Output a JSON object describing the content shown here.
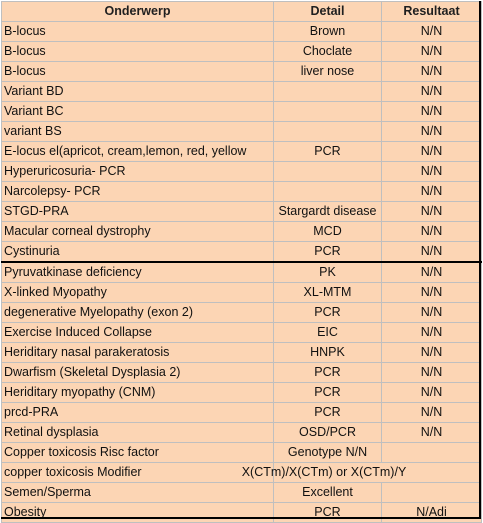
{
  "headers": {
    "subject": "Onderwerp",
    "detail": "Detail",
    "result": "Resultaat"
  },
  "rows": [
    {
      "subject": "B-locus",
      "detail": "Brown",
      "result": "N/N"
    },
    {
      "subject": "B-locus",
      "detail": "Choclate",
      "result": "N/N"
    },
    {
      "subject": "B-locus",
      "detail": "liver nose",
      "result": "N/N"
    },
    {
      "subject": "Variant BD",
      "detail": "",
      "result": "N/N"
    },
    {
      "subject": "Variant BC",
      "detail": "",
      "result": "N/N"
    },
    {
      "subject": "variant BS",
      "detail": "",
      "result": "N/N"
    },
    {
      "subject": "E-locus el(apricot, cream,lemon, red, yellow",
      "detail": "PCR",
      "result": "N/N"
    },
    {
      "subject": "Hyperuricosuria- PCR",
      "detail": "",
      "result": "N/N"
    },
    {
      "subject": "Narcolepsy- PCR",
      "detail": "",
      "result": "N/N"
    },
    {
      "subject": "STGD-PRA",
      "detail": "Stargardt disease",
      "result": "N/N"
    },
    {
      "subject": "Macular corneal dystrophy",
      "detail": "MCD",
      "result": "N/N"
    },
    {
      "subject": "Cystinuria",
      "detail": "PCR",
      "result": "N/N"
    },
    {
      "subject": "Pyruvatkinase deficiency",
      "detail": "PK",
      "result": "N/N"
    },
    {
      "subject": "X-linked Myopathy",
      "detail": "XL-MTM",
      "result": "N/N"
    },
    {
      "subject": "degenerative Myelopathy (exon 2)",
      "detail": "PCR",
      "result": "N/N"
    },
    {
      "subject": "Exercise Induced Collapse",
      "detail": "EIC",
      "result": "N/N"
    },
    {
      "subject": "Heriditary nasal parakeratosis",
      "detail": "HNPK",
      "result": "N/N"
    },
    {
      "subject": "Dwarfism (Skeletal Dysplasia 2)",
      "detail": "PCR",
      "result": "N/N"
    },
    {
      "subject": "Heriditary myopathy (CNM)",
      "detail": "PCR",
      "result": "N/N"
    },
    {
      "subject": "prcd-PRA",
      "detail": "PCR",
      "result": "N/N"
    },
    {
      "subject": "Retinal dysplasia",
      "detail": "OSD/PCR",
      "result": "N/N"
    },
    {
      "subject": "Copper toxicosis Risc factor",
      "detail": "Genotype N/N",
      "result": ""
    },
    {
      "subject": "copper toxicosis Modifier",
      "detail": "X(CTm)/X(CTm) or X(CTm)/Y",
      "result": ""
    },
    {
      "subject": "Semen/Sperma",
      "detail": "Excellent",
      "result": ""
    },
    {
      "subject": "Obesity",
      "detail": "PCR",
      "result": "N/Adi"
    }
  ]
}
